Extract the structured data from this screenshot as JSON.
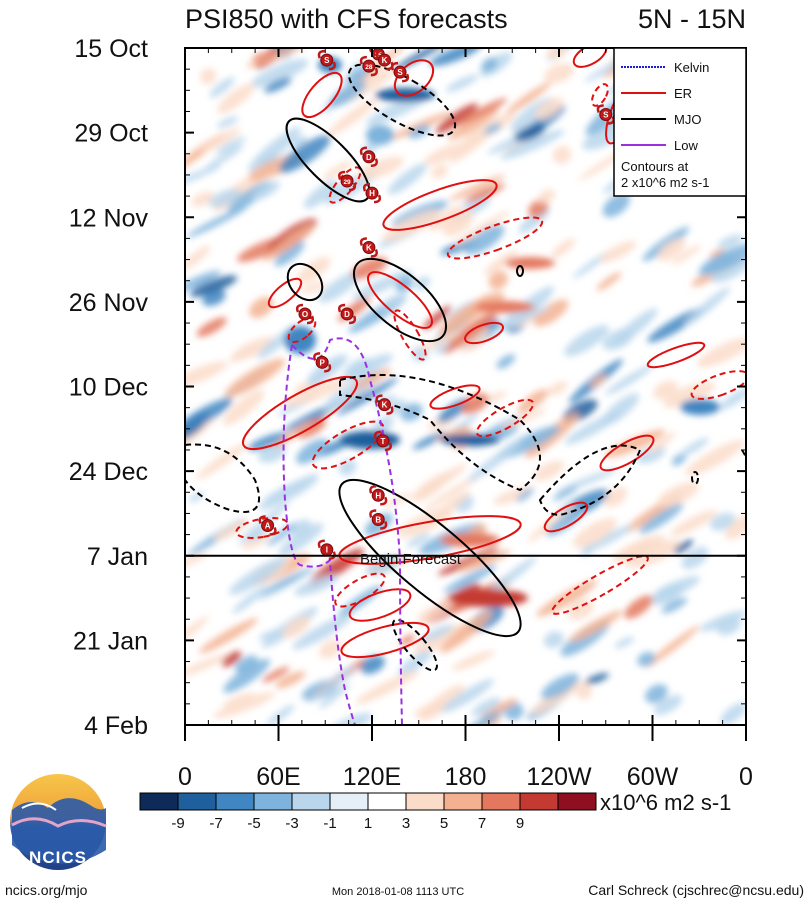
{
  "chart_data": {
    "type": "heatmap",
    "title": "PSI850 with CFS forecasts",
    "region": "5N - 15N",
    "y_ticks": [
      "15 Oct",
      "29 Oct",
      "12 Nov",
      "26 Nov",
      "10 Dec",
      "24 Dec",
      "7 Jan",
      "21 Jan",
      "4 Feb"
    ],
    "x_ticks": [
      "0",
      "60E",
      "120E",
      "180",
      "120W",
      "60W",
      "0"
    ],
    "x_range": [
      0,
      360
    ],
    "forecast_label": "Begin Forecast",
    "forecast_start": "7 Jan",
    "legend": {
      "items": [
        {
          "name": "Kelvin",
          "color": "#1c1cd8",
          "style": "dotted"
        },
        {
          "name": "ER",
          "color": "#e01010",
          "style": "solid"
        },
        {
          "name": "MJO",
          "color": "#000000",
          "style": "solid"
        },
        {
          "name": "Low",
          "color": "#9b30e0",
          "style": "solid"
        }
      ],
      "note_line1": "Contours at",
      "note_line2": "2 x10^6 m2 s-1"
    },
    "colorbar": {
      "labels": [
        "-9",
        "-7",
        "-5",
        "-3",
        "-1",
        "1",
        "3",
        "5",
        "7",
        "9"
      ],
      "colors": [
        "#0d2a59",
        "#1f5f9e",
        "#3f86c2",
        "#7db3dc",
        "#b9d6ec",
        "#e5eff7",
        "#ffffff",
        "#fbdcc9",
        "#f3b191",
        "#e4785e",
        "#c43a32",
        "#8e1020"
      ],
      "unit": "x10^6 m2 s-1"
    },
    "storms": [
      {
        "lon": 124,
        "date": "16 Oct",
        "label": "25"
      },
      {
        "lon": 91,
        "date": "17 Oct",
        "label": "S"
      },
      {
        "lon": 118,
        "date": "18 Oct",
        "label": "28"
      },
      {
        "lon": 128,
        "date": "17 Oct",
        "label": "K"
      },
      {
        "lon": 138,
        "date": "19 Oct",
        "label": "S"
      },
      {
        "lon": 270,
        "date": "26 Oct",
        "label": "S"
      },
      {
        "lon": 118,
        "date": "2 Nov",
        "label": "D"
      },
      {
        "lon": 104,
        "date": "6 Nov",
        "label": "29"
      },
      {
        "lon": 120,
        "date": "8 Nov",
        "label": "H"
      },
      {
        "lon": 118,
        "date": "17 Nov",
        "label": "K"
      },
      {
        "lon": 77,
        "date": "28 Nov",
        "label": "O"
      },
      {
        "lon": 104,
        "date": "28 Nov",
        "label": "D"
      },
      {
        "lon": 88,
        "date": "6 Dec",
        "label": "P"
      },
      {
        "lon": 128,
        "date": "13 Dec",
        "label": "K"
      },
      {
        "lon": 127,
        "date": "19 Dec",
        "label": "T"
      },
      {
        "lon": 124,
        "date": "28 Dec",
        "label": "H"
      },
      {
        "lon": 53,
        "date": "2 Jan",
        "label": "A"
      },
      {
        "lon": 124,
        "date": "1 Jan",
        "label": "B"
      },
      {
        "lon": 91,
        "date": "6 Jan",
        "label": "I"
      }
    ]
  },
  "logo": {
    "text": "NCICS"
  },
  "footer": {
    "left": "ncics.org/mjo",
    "center": "Mon 2018-01-08 1113 UTC",
    "right": "Carl Schreck (cjschrec@ncsu.edu)"
  }
}
